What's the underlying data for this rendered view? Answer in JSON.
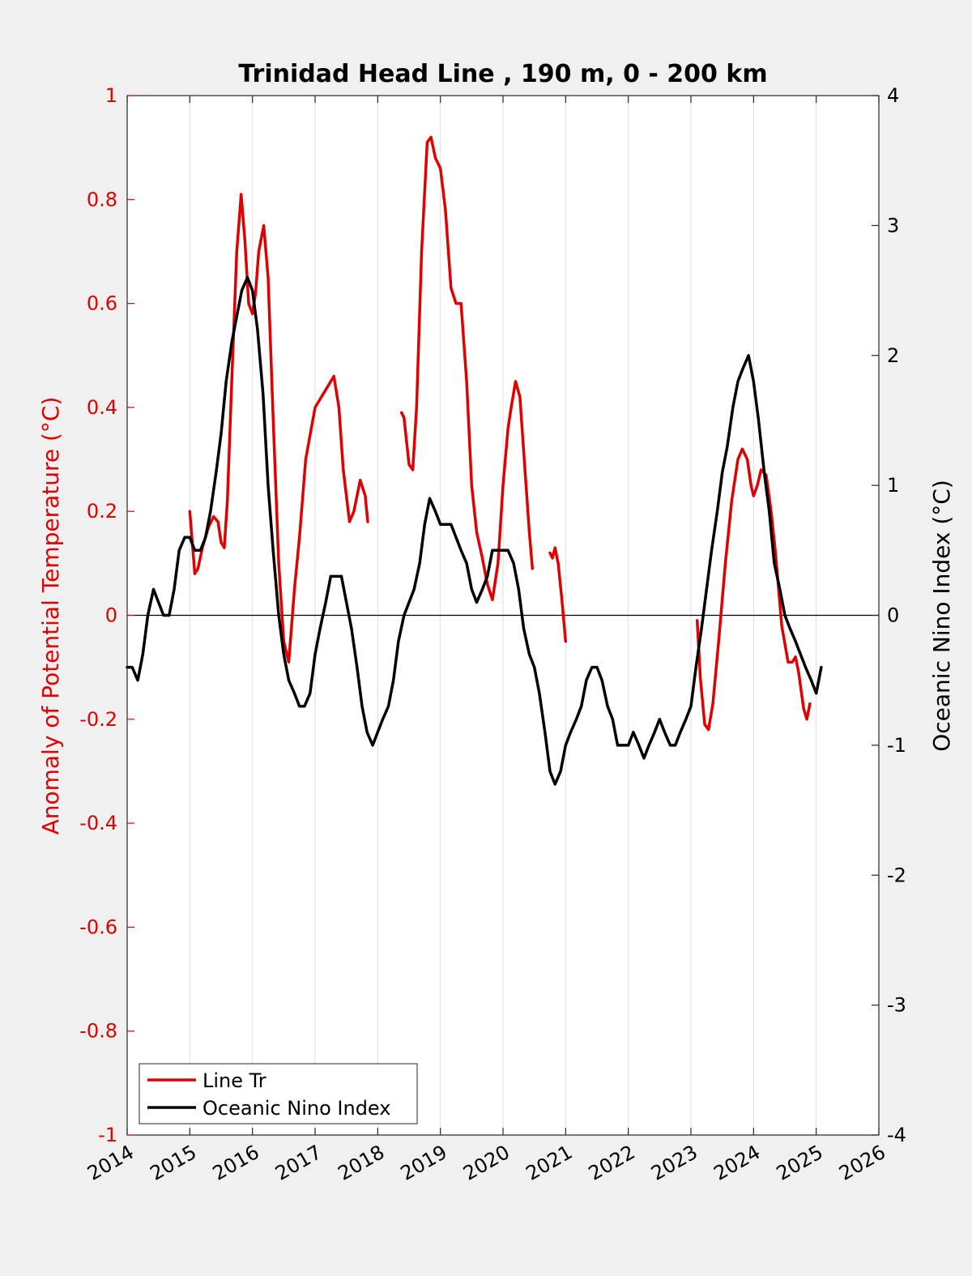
{
  "chart_data": {
    "type": "line",
    "title": "Trinidad Head Line , 190 m, 0 - 200 km",
    "ylabel_left": "Anomaly of Potential Temperature (°C)",
    "ylabel_right": "Oceanic Nino Index (°C)",
    "xlim": [
      2014,
      2026
    ],
    "ylim_left": [
      -1,
      1
    ],
    "ylim_right": [
      -4,
      4
    ],
    "x_ticks": [
      "2014",
      "2015",
      "2016",
      "2017",
      "2018",
      "2019",
      "2020",
      "2021",
      "2022",
      "2023",
      "2024",
      "2025",
      "2026"
    ],
    "y_left_ticks": [
      "-1",
      "-0.8",
      "-0.6",
      "-0.4",
      "-0.2",
      "0",
      "0.2",
      "0.4",
      "0.6",
      "0.8",
      "1"
    ],
    "y_right_ticks": [
      "-4",
      "-3",
      "-2",
      "-1",
      "0",
      "1",
      "2",
      "3",
      "4"
    ],
    "grid": "vertical",
    "legend_position": "bottom-left",
    "colors": {
      "line_tr": "#e00000",
      "oni": "#000000",
      "zero_line": "#000000"
    },
    "series": [
      {
        "name": "Line Tr",
        "axis": "left",
        "segments": [
          [
            [
              2015.0,
              0.2
            ],
            [
              2015.04,
              0.14
            ],
            [
              2015.08,
              0.08
            ],
            [
              2015.13,
              0.09
            ],
            [
              2015.2,
              0.13
            ],
            [
              2015.3,
              0.17
            ],
            [
              2015.38,
              0.19
            ],
            [
              2015.45,
              0.18
            ],
            [
              2015.5,
              0.14
            ],
            [
              2015.55,
              0.13
            ],
            [
              2015.6,
              0.22
            ],
            [
              2015.67,
              0.45
            ],
            [
              2015.75,
              0.7
            ],
            [
              2015.82,
              0.81
            ],
            [
              2015.88,
              0.72
            ],
            [
              2015.94,
              0.6
            ],
            [
              2016.0,
              0.58
            ],
            [
              2016.05,
              0.62
            ],
            [
              2016.1,
              0.7
            ],
            [
              2016.18,
              0.75
            ],
            [
              2016.25,
              0.65
            ],
            [
              2016.33,
              0.38
            ],
            [
              2016.42,
              0.1
            ],
            [
              2016.5,
              -0.05
            ],
            [
              2016.58,
              -0.09
            ],
            [
              2016.67,
              0.05
            ],
            [
              2016.75,
              0.15
            ],
            [
              2016.85,
              0.3
            ],
            [
              2017.0,
              0.4
            ],
            [
              2017.1,
              0.42
            ],
            [
              2017.2,
              0.44
            ],
            [
              2017.3,
              0.46
            ],
            [
              2017.38,
              0.4
            ],
            [
              2017.45,
              0.28
            ],
            [
              2017.55,
              0.18
            ],
            [
              2017.62,
              0.2
            ],
            [
              2017.72,
              0.26
            ],
            [
              2017.8,
              0.23
            ],
            [
              2017.84,
              0.18
            ]
          ],
          [
            [
              2018.38,
              0.39
            ],
            [
              2018.42,
              0.38
            ],
            [
              2018.5,
              0.29
            ],
            [
              2018.56,
              0.28
            ],
            [
              2018.62,
              0.4
            ],
            [
              2018.7,
              0.7
            ],
            [
              2018.79,
              0.91
            ],
            [
              2018.85,
              0.92
            ],
            [
              2018.92,
              0.88
            ],
            [
              2019.0,
              0.86
            ],
            [
              2019.08,
              0.78
            ],
            [
              2019.17,
              0.63
            ],
            [
              2019.25,
              0.6
            ],
            [
              2019.33,
              0.6
            ],
            [
              2019.42,
              0.45
            ],
            [
              2019.5,
              0.25
            ],
            [
              2019.58,
              0.16
            ],
            [
              2019.67,
              0.11
            ],
            [
              2019.75,
              0.06
            ],
            [
              2019.83,
              0.03
            ],
            [
              2019.92,
              0.1
            ],
            [
              2020.0,
              0.25
            ],
            [
              2020.08,
              0.36
            ],
            [
              2020.13,
              0.4
            ],
            [
              2020.2,
              0.45
            ],
            [
              2020.27,
              0.42
            ],
            [
              2020.35,
              0.28
            ],
            [
              2020.42,
              0.16
            ],
            [
              2020.47,
              0.09
            ]
          ],
          [
            [
              2020.75,
              0.12
            ],
            [
              2020.79,
              0.11
            ],
            [
              2020.83,
              0.13
            ],
            [
              2020.88,
              0.1
            ],
            [
              2020.94,
              0.03
            ],
            [
              2021.0,
              -0.05
            ]
          ],
          [
            [
              2023.1,
              -0.01
            ],
            [
              2023.15,
              -0.12
            ],
            [
              2023.22,
              -0.21
            ],
            [
              2023.28,
              -0.22
            ],
            [
              2023.35,
              -0.17
            ],
            [
              2023.45,
              -0.04
            ],
            [
              2023.55,
              0.1
            ],
            [
              2023.65,
              0.22
            ],
            [
              2023.75,
              0.3
            ],
            [
              2023.82,
              0.32
            ],
            [
              2023.9,
              0.3
            ],
            [
              2023.96,
              0.25
            ],
            [
              2024.0,
              0.23
            ],
            [
              2024.06,
              0.25
            ],
            [
              2024.12,
              0.28
            ],
            [
              2024.2,
              0.27
            ],
            [
              2024.28,
              0.2
            ],
            [
              2024.35,
              0.12
            ],
            [
              2024.45,
              -0.02
            ],
            [
              2024.55,
              -0.09
            ],
            [
              2024.62,
              -0.09
            ],
            [
              2024.67,
              -0.08
            ],
            [
              2024.72,
              -0.11
            ],
            [
              2024.8,
              -0.18
            ],
            [
              2024.85,
              -0.2
            ],
            [
              2024.9,
              -0.17
            ]
          ]
        ]
      },
      {
        "name": "Oceanic Nino Index",
        "axis": "right",
        "points": [
          [
            2014.0,
            -0.4
          ],
          [
            2014.08,
            -0.4
          ],
          [
            2014.17,
            -0.5
          ],
          [
            2014.25,
            -0.3
          ],
          [
            2014.33,
            0.0
          ],
          [
            2014.42,
            0.2
          ],
          [
            2014.5,
            0.1
          ],
          [
            2014.58,
            0.0
          ],
          [
            2014.67,
            0.0
          ],
          [
            2014.75,
            0.2
          ],
          [
            2014.83,
            0.5
          ],
          [
            2014.92,
            0.6
          ],
          [
            2015.0,
            0.6
          ],
          [
            2015.08,
            0.5
          ],
          [
            2015.17,
            0.5
          ],
          [
            2015.25,
            0.6
          ],
          [
            2015.33,
            0.8
          ],
          [
            2015.42,
            1.1
          ],
          [
            2015.5,
            1.4
          ],
          [
            2015.58,
            1.8
          ],
          [
            2015.67,
            2.1
          ],
          [
            2015.75,
            2.3
          ],
          [
            2015.83,
            2.5
          ],
          [
            2015.92,
            2.6
          ],
          [
            2016.0,
            2.5
          ],
          [
            2016.08,
            2.2
          ],
          [
            2016.17,
            1.7
          ],
          [
            2016.25,
            1.0
          ],
          [
            2016.33,
            0.5
          ],
          [
            2016.42,
            0.0
          ],
          [
            2016.5,
            -0.3
          ],
          [
            2016.58,
            -0.5
          ],
          [
            2016.67,
            -0.6
          ],
          [
            2016.75,
            -0.7
          ],
          [
            2016.83,
            -0.7
          ],
          [
            2016.92,
            -0.6
          ],
          [
            2017.0,
            -0.3
          ],
          [
            2017.08,
            -0.1
          ],
          [
            2017.17,
            0.1
          ],
          [
            2017.25,
            0.3
          ],
          [
            2017.33,
            0.3
          ],
          [
            2017.42,
            0.3
          ],
          [
            2017.5,
            0.1
          ],
          [
            2017.58,
            -0.1
          ],
          [
            2017.67,
            -0.4
          ],
          [
            2017.75,
            -0.7
          ],
          [
            2017.83,
            -0.9
          ],
          [
            2017.92,
            -1.0
          ],
          [
            2018.0,
            -0.9
          ],
          [
            2018.08,
            -0.8
          ],
          [
            2018.17,
            -0.7
          ],
          [
            2018.25,
            -0.5
          ],
          [
            2018.33,
            -0.2
          ],
          [
            2018.42,
            0.0
          ],
          [
            2018.5,
            0.1
          ],
          [
            2018.58,
            0.2
          ],
          [
            2018.67,
            0.4
          ],
          [
            2018.75,
            0.7
          ],
          [
            2018.83,
            0.9
          ],
          [
            2018.92,
            0.8
          ],
          [
            2019.0,
            0.7
          ],
          [
            2019.08,
            0.7
          ],
          [
            2019.17,
            0.7
          ],
          [
            2019.25,
            0.6
          ],
          [
            2019.33,
            0.5
          ],
          [
            2019.42,
            0.4
          ],
          [
            2019.5,
            0.2
          ],
          [
            2019.58,
            0.1
          ],
          [
            2019.67,
            0.2
          ],
          [
            2019.75,
            0.3
          ],
          [
            2019.83,
            0.5
          ],
          [
            2019.92,
            0.5
          ],
          [
            2020.0,
            0.5
          ],
          [
            2020.08,
            0.5
          ],
          [
            2020.17,
            0.4
          ],
          [
            2020.25,
            0.2
          ],
          [
            2020.33,
            -0.1
          ],
          [
            2020.42,
            -0.3
          ],
          [
            2020.5,
            -0.4
          ],
          [
            2020.58,
            -0.6
          ],
          [
            2020.67,
            -0.9
          ],
          [
            2020.75,
            -1.2
          ],
          [
            2020.83,
            -1.3
          ],
          [
            2020.92,
            -1.2
          ],
          [
            2021.0,
            -1.0
          ],
          [
            2021.08,
            -0.9
          ],
          [
            2021.17,
            -0.8
          ],
          [
            2021.25,
            -0.7
          ],
          [
            2021.33,
            -0.5
          ],
          [
            2021.42,
            -0.4
          ],
          [
            2021.5,
            -0.4
          ],
          [
            2021.58,
            -0.5
          ],
          [
            2021.67,
            -0.7
          ],
          [
            2021.75,
            -0.8
          ],
          [
            2021.83,
            -1.0
          ],
          [
            2021.92,
            -1.0
          ],
          [
            2022.0,
            -1.0
          ],
          [
            2022.08,
            -0.9
          ],
          [
            2022.17,
            -1.0
          ],
          [
            2022.25,
            -1.1
          ],
          [
            2022.33,
            -1.0
          ],
          [
            2022.42,
            -0.9
          ],
          [
            2022.5,
            -0.8
          ],
          [
            2022.58,
            -0.9
          ],
          [
            2022.67,
            -1.0
          ],
          [
            2022.75,
            -1.0
          ],
          [
            2022.83,
            -0.9
          ],
          [
            2022.92,
            -0.8
          ],
          [
            2023.0,
            -0.7
          ],
          [
            2023.08,
            -0.4
          ],
          [
            2023.17,
            -0.1
          ],
          [
            2023.25,
            0.2
          ],
          [
            2023.33,
            0.5
          ],
          [
            2023.42,
            0.8
          ],
          [
            2023.5,
            1.1
          ],
          [
            2023.58,
            1.3
          ],
          [
            2023.67,
            1.6
          ],
          [
            2023.75,
            1.8
          ],
          [
            2023.83,
            1.9
          ],
          [
            2023.92,
            2.0
          ],
          [
            2024.0,
            1.8
          ],
          [
            2024.08,
            1.5
          ],
          [
            2024.17,
            1.1
          ],
          [
            2024.25,
            0.8
          ],
          [
            2024.33,
            0.4
          ],
          [
            2024.42,
            0.2
          ],
          [
            2024.5,
            0.0
          ],
          [
            2024.58,
            -0.1
          ],
          [
            2024.67,
            -0.2
          ],
          [
            2024.75,
            -0.3
          ],
          [
            2024.83,
            -0.4
          ],
          [
            2024.92,
            -0.5
          ],
          [
            2025.0,
            -0.6
          ],
          [
            2025.08,
            -0.4
          ]
        ]
      }
    ]
  }
}
